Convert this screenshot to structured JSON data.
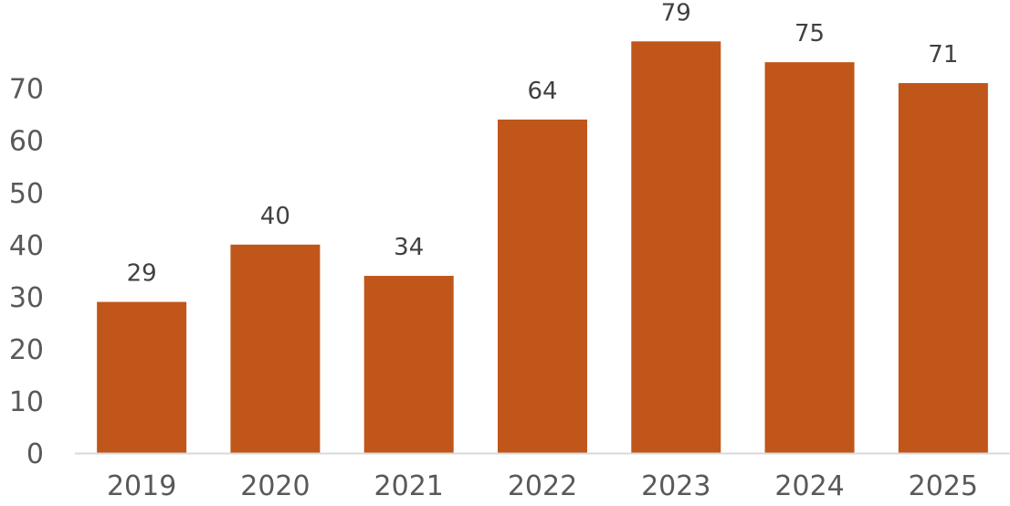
{
  "chart_data": {
    "type": "bar",
    "categories": [
      "2019",
      "2020",
      "2021",
      "2022",
      "2023",
      "2024",
      "2025"
    ],
    "values": [
      29,
      40,
      34,
      64,
      79,
      75,
      71
    ],
    "data_labels": [
      "29",
      "40",
      "34",
      "64",
      "79",
      "75",
      "71"
    ],
    "y_ticks": [
      0,
      10,
      20,
      30,
      40,
      50,
      60,
      70
    ],
    "y_tick_labels": [
      "0",
      "10",
      "20",
      "30",
      "40",
      "50",
      "60",
      "70"
    ],
    "ylim": [
      0,
      80
    ],
    "title": "",
    "xlabel": "",
    "ylabel": "",
    "grid": false,
    "legend": "none",
    "colors": {
      "bar": "#C0561A",
      "axis": "#D9D9D9",
      "tick_text": "#595959",
      "label_text": "#404040"
    }
  }
}
